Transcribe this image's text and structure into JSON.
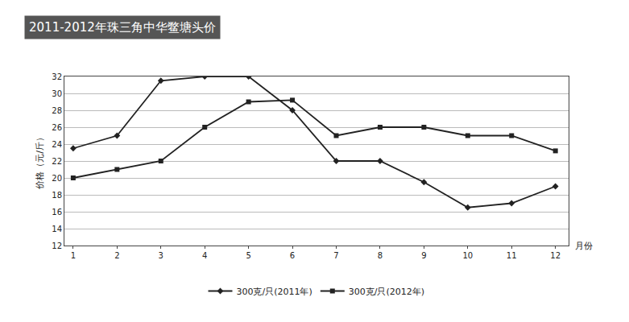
{
  "chart_data": {
    "type": "line",
    "title": "2011-2012年珠三角中华鳖塘头价",
    "y_label": "价格（元/斤）",
    "x_label": "月份",
    "x": [
      1,
      2,
      3,
      4,
      5,
      6,
      7,
      8,
      9,
      10,
      11,
      12
    ],
    "series": [
      {
        "name": "300克/只(2011年)",
        "color": "#222222",
        "marker": "diamond",
        "values": [
          23.5,
          25,
          31.5,
          32,
          32,
          28,
          22,
          22,
          19.5,
          16.5,
          17,
          19
        ]
      },
      {
        "name": "300克/只(2012年)",
        "color": "#222222",
        "marker": "square",
        "values": [
          20,
          21,
          22,
          26,
          29,
          29.2,
          25,
          26,
          26,
          25,
          25,
          23.2
        ]
      }
    ],
    "xlim": [
      0.8,
      12.3
    ],
    "xticks": [
      1,
      2,
      3,
      4,
      5,
      6,
      7,
      8,
      9,
      10,
      11,
      12
    ],
    "ylim": [
      12,
      32
    ],
    "yticks": [
      12,
      14,
      16,
      18,
      20,
      22,
      24,
      26,
      28,
      30,
      32
    ],
    "grid": true,
    "legend": "bottom"
  }
}
